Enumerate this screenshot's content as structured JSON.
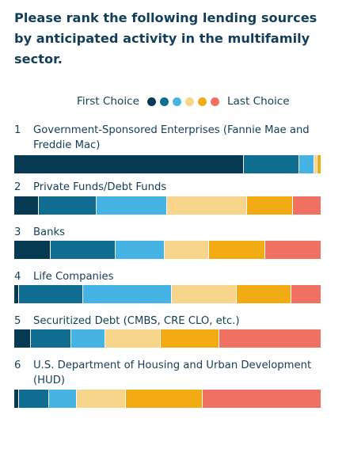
{
  "title": "Please rank the following lending sources by anticipated activity in the multifamily sector.",
  "legend": {
    "first_label": "First Choice",
    "last_label": "Last Choice",
    "colors": [
      "#053a52",
      "#0f6d91",
      "#45b4e4",
      "#f7d58a",
      "#f2ab12",
      "#f07161"
    ]
  },
  "chart_data": {
    "type": "bar",
    "orientation": "horizontal",
    "stacked": true,
    "normalized_to": 100,
    "categories": [
      "Government-Sponsored Enterprises (Fannie Mae and Freddie Mac)",
      "Private Funds/Debt Funds",
      "Banks",
      "Life Companies",
      "Securitized Debt (CMBS, CRE CLO, etc.)",
      "U.S. Department of Housing and Urban Development (HUD)"
    ],
    "ranks": [
      "1",
      "2",
      "3",
      "4",
      "5",
      "6"
    ],
    "series": [
      {
        "name": "First Choice",
        "values": [
          75,
          8,
          12,
          1.5,
          5.5,
          1.5
        ]
      },
      {
        "name": "",
        "values": [
          18,
          19,
          21,
          21,
          13,
          10
        ]
      },
      {
        "name": "",
        "values": [
          5,
          23,
          16,
          29,
          11,
          9
        ]
      },
      {
        "name": "",
        "values": [
          1,
          26,
          14.5,
          21,
          18,
          16
        ]
      },
      {
        "name": "",
        "values": [
          1,
          15,
          18.5,
          18,
          19,
          25
        ]
      },
      {
        "name": "Last Choice",
        "values": [
          0,
          9,
          18,
          9.5,
          33,
          38.5
        ]
      }
    ]
  }
}
